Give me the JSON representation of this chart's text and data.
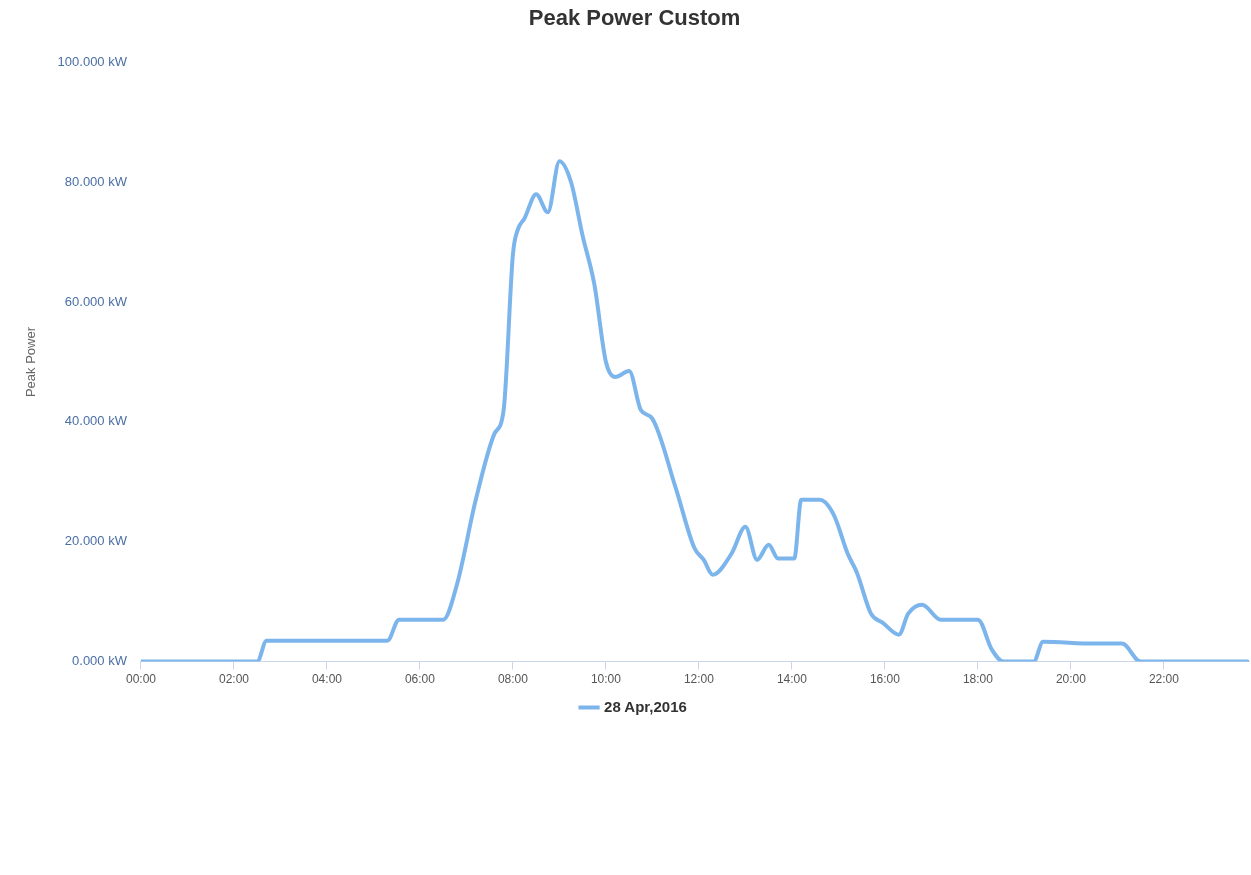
{
  "chart_data": {
    "type": "line",
    "title": "Peak Power Custom",
    "ylabel": "Peak Power",
    "x": [
      0,
      2.5,
      2.7,
      5.3,
      5.55,
      6.5,
      6.8,
      7.2,
      7.6,
      7.8,
      8.0,
      8.1,
      8.25,
      8.5,
      8.75,
      9.0,
      9.25,
      9.5,
      9.75,
      10.0,
      10.2,
      10.5,
      10.75,
      11.0,
      11.5,
      11.9,
      12.1,
      12.3,
      12.7,
      13.0,
      13.25,
      13.5,
      13.7,
      14.05,
      14.2,
      14.6,
      14.9,
      15.2,
      15.4,
      15.7,
      15.95,
      16.3,
      16.5,
      16.8,
      17.2,
      18.0,
      18.3,
      18.55,
      19.2,
      19.4,
      20.5,
      21.1,
      21.5,
      23.8
    ],
    "series": [
      {
        "name": "28 Apr,2016",
        "color": "#7cb5ec",
        "values": [
          0,
          0,
          3.5,
          3.5,
          7,
          7,
          13,
          27,
          38,
          42,
          68,
          72,
          74,
          78,
          75,
          83.5,
          80,
          71,
          63,
          50,
          47.5,
          48.5,
          42,
          40.5,
          29,
          19,
          17,
          14.5,
          18,
          22.5,
          17,
          19.5,
          17.2,
          17.2,
          27,
          27,
          24.5,
          18,
          14.8,
          8,
          6.5,
          4.5,
          8,
          9.5,
          7,
          7,
          2,
          0,
          0,
          3.3,
          3,
          3,
          0,
          0
        ]
      }
    ],
    "xlim": [
      0,
      23.83
    ],
    "xticks": [
      {
        "value": 0,
        "label": "00:00"
      },
      {
        "value": 2,
        "label": "02:00"
      },
      {
        "value": 4,
        "label": "04:00"
      },
      {
        "value": 6,
        "label": "06:00"
      },
      {
        "value": 8,
        "label": "08:00"
      },
      {
        "value": 10,
        "label": "10:00"
      },
      {
        "value": 12,
        "label": "12:00"
      },
      {
        "value": 14,
        "label": "14:00"
      },
      {
        "value": 16,
        "label": "16:00"
      },
      {
        "value": 18,
        "label": "18:00"
      },
      {
        "value": 20,
        "label": "20:00"
      },
      {
        "value": 22,
        "label": "22:00"
      }
    ],
    "ylim": [
      0,
      100
    ],
    "yticks": [
      {
        "value": 0,
        "label": "0.000 kW"
      },
      {
        "value": 20,
        "label": "20.000 kW"
      },
      {
        "value": 40,
        "label": "40.000 kW"
      },
      {
        "value": 60,
        "label": "60.000 kW"
      },
      {
        "value": 80,
        "label": "80.000 kW"
      },
      {
        "value": 100,
        "label": "100.000 kW"
      }
    ],
    "grid": false,
    "legend": "bottom",
    "marker": "none",
    "line_style": "solid"
  }
}
